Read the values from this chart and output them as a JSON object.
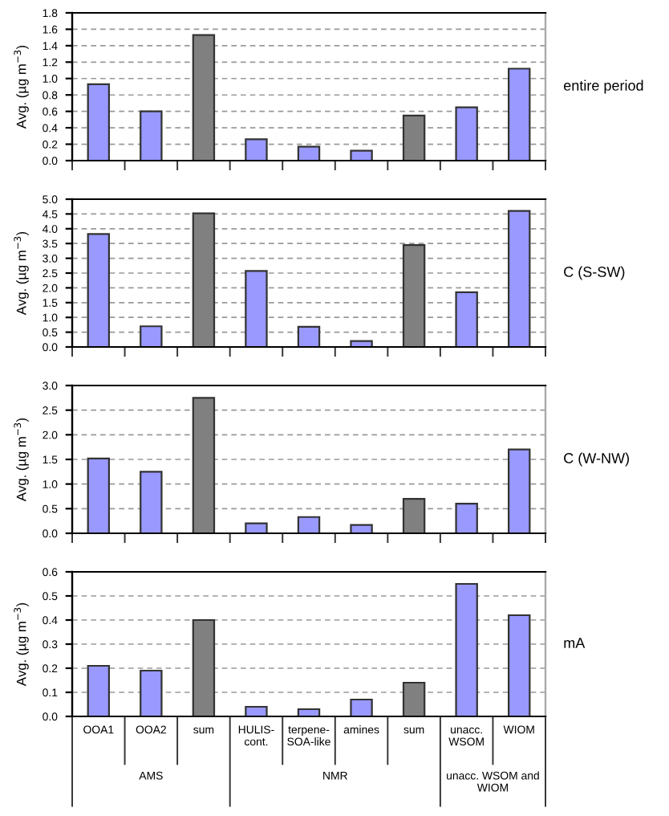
{
  "chart_data": [
    {
      "type": "bar",
      "y2label": "entire period",
      "ylabel": "Avg. (µg m$^{−3}$)",
      "categories": [
        null,
        null,
        null,
        null,
        null,
        null,
        null,
        null,
        null
      ],
      "values": [
        0.93,
        0.6,
        1.53,
        0.26,
        0.17,
        0.12,
        0.55,
        0.65,
        1.12
      ],
      "colors": [
        "#9999ff",
        "#9999ff",
        "#808080",
        "#9999ff",
        "#9999ff",
        "#9999ff",
        "#808080",
        "#9999ff",
        "#9999ff"
      ],
      "ylim": [
        0,
        1.8
      ],
      "yticks": [
        {
          "value": 0,
          "label": "0.0"
        },
        {
          "value": 0.2,
          "label": "0.2"
        },
        {
          "value": 0.4,
          "label": "0.4"
        },
        {
          "value": 0.6,
          "label": "0.6"
        },
        {
          "value": 0.8,
          "label": "0.8"
        },
        {
          "value": 1.0,
          "label": "1.0"
        },
        {
          "value": 1.2,
          "label": "1.2"
        },
        {
          "value": 1.4,
          "label": "1.4"
        },
        {
          "value": 1.6,
          "label": "1.6"
        },
        {
          "value": 1.8,
          "label": "1.8"
        }
      ],
      "grid": "y",
      "tick_labels": "y"
    },
    {
      "type": "bar",
      "y2label": "C (S-SW)",
      "ylabel": "Avg. (µg m$^{−3}$)",
      "categories": [
        null,
        null,
        null,
        null,
        null,
        null,
        null,
        null,
        null
      ],
      "values": [
        3.82,
        0.7,
        4.52,
        2.57,
        0.68,
        0.2,
        3.45,
        1.85,
        4.6
      ],
      "colors": [
        "#9999ff",
        "#9999ff",
        "#808080",
        "#9999ff",
        "#9999ff",
        "#9999ff",
        "#808080",
        "#9999ff",
        "#9999ff"
      ],
      "ylim": [
        0,
        5.0
      ],
      "yticks": [
        {
          "value": 0,
          "label": "0.0"
        },
        {
          "value": 0.5,
          "label": "0.5"
        },
        {
          "value": 1.0,
          "label": "1.0"
        },
        {
          "value": 1.5,
          "label": "1.5"
        },
        {
          "value": 2.0,
          "label": "2.0"
        },
        {
          "value": 2.5,
          "label": "2.5"
        },
        {
          "value": 3.0,
          "label": "3.0"
        },
        {
          "value": 3.5,
          "label": "3.5"
        },
        {
          "value": 4.0,
          "label": "4.0"
        },
        {
          "value": 4.5,
          "label": "4.5"
        },
        {
          "value": 5.0,
          "label": "5.0"
        }
      ],
      "grid": "y",
      "tick_labels": "y"
    },
    {
      "type": "bar",
      "y2label": "C (W-NW)",
      "ylabel": "Avg. (µg m$^{−3}$)",
      "categories": [
        null,
        null,
        null,
        null,
        null,
        null,
        null,
        null,
        null
      ],
      "values": [
        1.52,
        1.25,
        2.75,
        0.2,
        0.33,
        0.17,
        0.7,
        0.6,
        1.7
      ],
      "colors": [
        "#9999ff",
        "#9999ff",
        "#808080",
        "#9999ff",
        "#9999ff",
        "#9999ff",
        "#808080",
        "#9999ff",
        "#9999ff"
      ],
      "ylim": [
        0,
        3.0
      ],
      "yticks": [
        {
          "value": 0,
          "label": "0.0"
        },
        {
          "value": 0.5,
          "label": "0.5"
        },
        {
          "value": 1.0,
          "label": "1.0"
        },
        {
          "value": 1.5,
          "label": "1.5"
        },
        {
          "value": 2.0,
          "label": "2.0"
        },
        {
          "value": 2.5,
          "label": "2.5"
        },
        {
          "value": 3.0,
          "label": "3.0"
        }
      ],
      "grid": "y",
      "tick_labels": "y"
    },
    {
      "type": "bar",
      "y2label": "mA",
      "ylabel": "Avg. (µg m$^{−3}$)",
      "categories": [
        "OOA1",
        "OOA2",
        "sum",
        "HULIS-\ncont.",
        "terpene-\nSOA-like",
        "amines",
        "sum",
        "unacc.\nWSOM",
        "WIOM"
      ],
      "values": [
        0.21,
        0.19,
        0.4,
        0.04,
        0.03,
        0.07,
        0.14,
        0.55,
        0.42
      ],
      "colors": [
        "#9999ff",
        "#9999ff",
        "#808080",
        "#9999ff",
        "#9999ff",
        "#9999ff",
        "#808080",
        "#9999ff",
        "#9999ff"
      ],
      "ylim": [
        0,
        0.6
      ],
      "yticks": [
        {
          "value": 0,
          "label": "0.0"
        },
        {
          "value": 0.1,
          "label": "0.1"
        },
        {
          "value": 0.2,
          "label": "0.2"
        },
        {
          "value": 0.3,
          "label": "0.3"
        },
        {
          "value": 0.4,
          "label": "0.4"
        },
        {
          "value": 0.5,
          "label": "0.5"
        },
        {
          "value": 0.6,
          "label": "0.6"
        }
      ],
      "grid": "y",
      "annotations": [
        "AMS",
        "NMR",
        "unacc. WSOM and\nWIOM"
      ]
    }
  ]
}
